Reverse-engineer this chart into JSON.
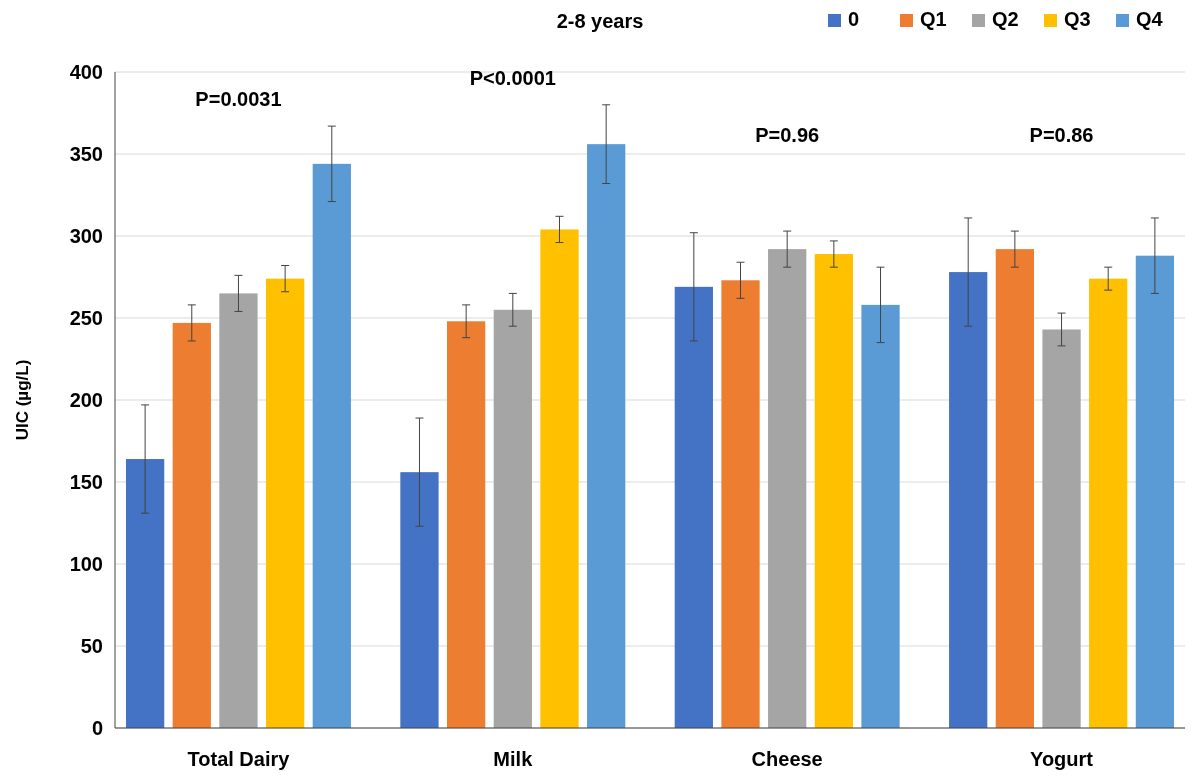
{
  "chart_data": {
    "type": "bar",
    "title": "2-8 years",
    "ylabel": "UIC (µg/L)",
    "categories": [
      "Total Dairy",
      "Milk",
      "Cheese",
      "Yogurt"
    ],
    "series": [
      {
        "name": "0",
        "color": "#4472c4",
        "values": [
          164,
          156,
          269,
          278
        ],
        "errors": [
          33,
          33,
          33,
          33
        ]
      },
      {
        "name": "Q1",
        "color": "#ed7d31",
        "values": [
          247,
          248,
          273,
          292
        ],
        "errors": [
          11,
          10,
          11,
          11
        ]
      },
      {
        "name": "Q2",
        "color": "#a5a5a5",
        "values": [
          265,
          255,
          292,
          243
        ],
        "errors": [
          11,
          10,
          11,
          10
        ]
      },
      {
        "name": "Q3",
        "color": "#ffc000",
        "values": [
          274,
          304,
          289,
          274
        ],
        "errors": [
          8,
          8,
          8,
          7
        ]
      },
      {
        "name": "Q4",
        "color": "#5b9bd5",
        "values": [
          344,
          356,
          258,
          288
        ],
        "errors": [
          23,
          24,
          23,
          23
        ]
      }
    ],
    "ylim": [
      0,
      400
    ],
    "yticks": [
      0,
      50,
      100,
      150,
      200,
      250,
      300,
      350,
      400
    ],
    "grid": "y",
    "legend": "top right",
    "annotations": [
      "P=0.0031",
      "P<0.0001",
      "P=0.96",
      "P=0.86"
    ]
  }
}
